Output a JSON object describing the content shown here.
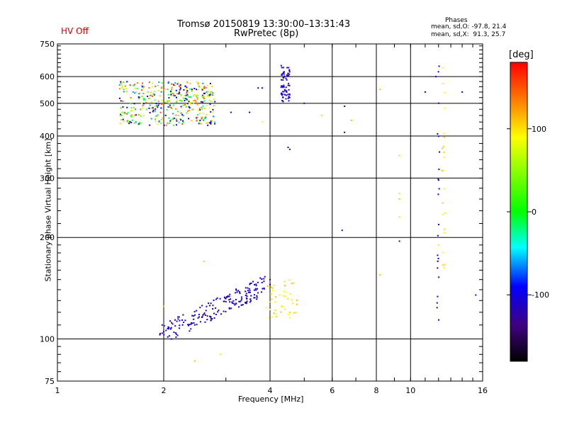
{
  "header": {
    "status": "HV Off",
    "title": "Tromsø 20150819 13:30:00–13:31:43",
    "subtitle": "RwPretec (8p)",
    "stats_title": "Phases",
    "stats_o": "mean, sd,O: -97.8, 21.4",
    "stats_x": "mean, sd,X:  91.3, 25.7"
  },
  "colorbar": {
    "unit": "[deg]",
    "ticks": [
      "100",
      "0",
      "-100"
    ],
    "range": [
      -180,
      180
    ]
  },
  "chart_data": {
    "type": "scatter",
    "title": "Tromsø 20150819 13:30:00–13:31:43",
    "subtitle": "RwPretec (8p)",
    "xlabel": "Frequency [MHz]",
    "ylabel": "Stationary phase Virtual Height [km]",
    "x_scale": "log",
    "y_scale": "log",
    "xlim": [
      1,
      16
    ],
    "ylim": [
      75,
      750
    ],
    "x_ticks": [
      "1",
      "2",
      "4",
      "6",
      "8",
      "10",
      "16"
    ],
    "y_ticks": [
      "75",
      "100",
      "200",
      "300",
      "400",
      "500",
      "600",
      "750"
    ],
    "grid": true,
    "clusters": [
      {
        "label": "F-region trace, mixed phases",
        "x": [
          1.5,
          2.8
        ],
        "y": [
          430,
          580
        ],
        "phase": "mixed",
        "count": 420
      },
      {
        "label": "F-region trace, high-frequency cusp",
        "x": [
          4.3,
          4.55
        ],
        "y": [
          505,
          650
        ],
        "phase": -110,
        "count": 70
      },
      {
        "label": "E/F1 trace O-mode",
        "x": [
          1.95,
          3.9
        ],
        "y": [
          103,
          145
        ],
        "phase": -110,
        "count": 190
      },
      {
        "label": "E/F1 trace X-mode",
        "x": [
          3.9,
          4.8
        ],
        "y": [
          115,
          150
        ],
        "phase": 95,
        "count": 45
      }
    ],
    "points": [
      {
        "x": 2.0,
        "y": 105,
        "phase": -120
      },
      {
        "x": 2.03,
        "y": 106,
        "phase": -110
      },
      {
        "x": 1.98,
        "y": 104,
        "phase": -130
      },
      {
        "x": 2.6,
        "y": 170,
        "phase": 110
      },
      {
        "x": 2.9,
        "y": 90,
        "phase": 100
      },
      {
        "x": 2.45,
        "y": 86,
        "phase": 110
      },
      {
        "x": 2.0,
        "y": 125,
        "phase": 110
      },
      {
        "x": 4.0,
        "y": 145,
        "phase": -110
      },
      {
        "x": 4.0,
        "y": 150,
        "phase": -120
      },
      {
        "x": 4.5,
        "y": 370,
        "phase": -100
      },
      {
        "x": 4.55,
        "y": 365,
        "phase": -110
      },
      {
        "x": 3.5,
        "y": 470,
        "phase": -100
      },
      {
        "x": 3.1,
        "y": 470,
        "phase": -110
      },
      {
        "x": 3.8,
        "y": 440,
        "phase": 90
      },
      {
        "x": 3.7,
        "y": 555,
        "phase": -110
      },
      {
        "x": 3.8,
        "y": 555,
        "phase": -100
      },
      {
        "x": 5.0,
        "y": 500,
        "phase": -110
      },
      {
        "x": 5.6,
        "y": 460,
        "phase": 100
      },
      {
        "x": 6.5,
        "y": 490,
        "phase": -100
      },
      {
        "x": 6.5,
        "y": 410,
        "phase": -120
      },
      {
        "x": 6.8,
        "y": 445,
        "phase": 40
      },
      {
        "x": 6.4,
        "y": 210,
        "phase": -110
      },
      {
        "x": 8.2,
        "y": 155,
        "phase": 110
      },
      {
        "x": 8.2,
        "y": 550,
        "phase": 110
      },
      {
        "x": 9.3,
        "y": 195,
        "phase": -120
      },
      {
        "x": 9.3,
        "y": 230,
        "phase": 100
      },
      {
        "x": 9.3,
        "y": 260,
        "phase": 110
      },
      {
        "x": 9.3,
        "y": 270,
        "phase": 100
      },
      {
        "x": 9.3,
        "y": 350,
        "phase": 105
      },
      {
        "x": 11.0,
        "y": 540,
        "phase": -110
      },
      {
        "x": 11.8,
        "y": 600,
        "phase": -100
      },
      {
        "x": 14.0,
        "y": 540,
        "phase": -110
      },
      {
        "x": 15.3,
        "y": 135,
        "phase": -100
      },
      {
        "x": 12.0,
        "y": 170,
        "phase": 110
      },
      {
        "x": 12.0,
        "y": 190,
        "phase": 100
      }
    ],
    "vertical_streaks": [
      {
        "x": 12.0,
        "y": [
          110,
          650
        ],
        "phase": -110
      },
      {
        "x": 12.4,
        "y": [
          155,
          640
        ],
        "phase": 100
      }
    ]
  }
}
